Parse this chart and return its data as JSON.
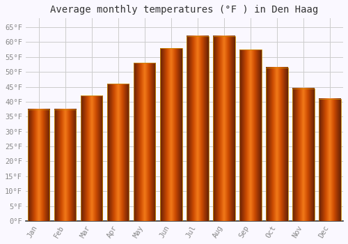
{
  "title": "Average monthly temperatures (°F ) in Den Haag",
  "months": [
    "Jan",
    "Feb",
    "Mar",
    "Apr",
    "May",
    "Jun",
    "Jul",
    "Aug",
    "Sep",
    "Oct",
    "Nov",
    "Dec"
  ],
  "values": [
    37.5,
    37.5,
    42,
    46,
    53,
    58,
    62,
    62,
    57.5,
    51.5,
    44.5,
    41
  ],
  "bar_color_top": "#FFA500",
  "bar_color_mid": "#FFD050",
  "bar_edge_color": "#CC8800",
  "background_color": "#FAF8FF",
  "grid_color": "#CCCCCC",
  "ylim": [
    0,
    68
  ],
  "yticks": [
    0,
    5,
    10,
    15,
    20,
    25,
    30,
    35,
    40,
    45,
    50,
    55,
    60,
    65
  ],
  "ytick_labels": [
    "0°F",
    "5°F",
    "10°F",
    "15°F",
    "20°F",
    "25°F",
    "30°F",
    "35°F",
    "40°F",
    "45°F",
    "50°F",
    "55°F",
    "60°F",
    "65°F"
  ],
  "title_fontsize": 10,
  "tick_fontsize": 7.5,
  "tick_font_color": "#888888",
  "title_font_color": "#333333",
  "bar_width": 0.82
}
